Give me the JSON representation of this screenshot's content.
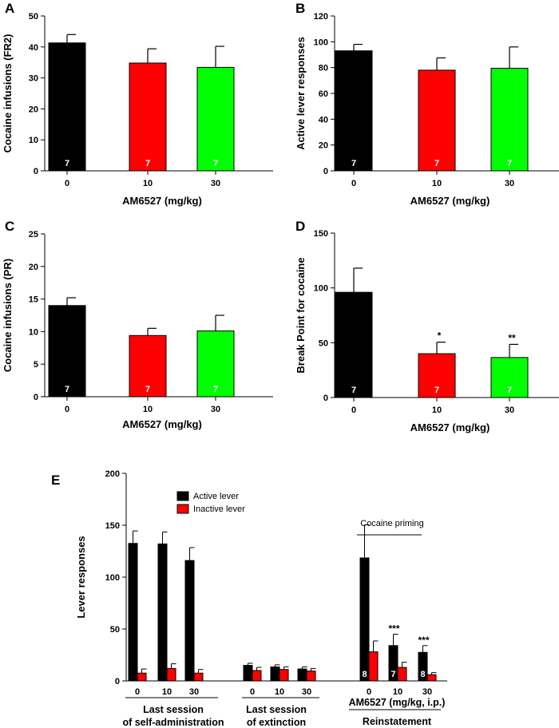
{
  "chart_data": [
    {
      "id": "A",
      "type": "bar",
      "panel_label": "A",
      "categories": [
        "0",
        "10",
        "30"
      ],
      "values": [
        41.3,
        34.8,
        33.4
      ],
      "errors": [
        2.7,
        4.6,
        6.8
      ],
      "n_labels": [
        "7",
        "7",
        "7"
      ],
      "sig_labels": [
        "",
        "",
        ""
      ],
      "colors": [
        "#000000",
        "#ff0000",
        "#00ff00"
      ],
      "xlabel": "AM6527 (mg/kg)",
      "ylabel": "Cocaine infusions (FR2)",
      "ylim": [
        0,
        50
      ],
      "yticks": [
        0,
        10,
        20,
        30,
        40,
        50
      ]
    },
    {
      "id": "B",
      "type": "bar",
      "panel_label": "B",
      "categories": [
        "0",
        "10",
        "30"
      ],
      "values": [
        93,
        78,
        79.5
      ],
      "errors": [
        5,
        9.5,
        16.5
      ],
      "n_labels": [
        "7",
        "7",
        "7"
      ],
      "sig_labels": [
        "",
        "",
        ""
      ],
      "colors": [
        "#000000",
        "#ff0000",
        "#00ff00"
      ],
      "xlabel": "AM6527 (mg/kg)",
      "ylabel": "Active lever responses",
      "ylim": [
        0,
        120
      ],
      "yticks": [
        0,
        20,
        40,
        60,
        80,
        100,
        120
      ]
    },
    {
      "id": "C",
      "type": "bar",
      "panel_label": "C",
      "categories": [
        "0",
        "10",
        "30"
      ],
      "values": [
        14,
        9.4,
        10.1
      ],
      "errors": [
        1.2,
        1.1,
        2.4
      ],
      "n_labels": [
        "7",
        "7",
        "7"
      ],
      "sig_labels": [
        "",
        "",
        ""
      ],
      "colors": [
        "#000000",
        "#ff0000",
        "#00ff00"
      ],
      "xlabel": "AM6527 (mg/kg)",
      "ylabel": "Cocaine infusions (PR)",
      "ylim": [
        0,
        25
      ],
      "yticks": [
        0,
        5,
        10,
        15,
        20,
        25
      ]
    },
    {
      "id": "D",
      "type": "bar",
      "panel_label": "D",
      "categories": [
        "0",
        "10",
        "30"
      ],
      "values": [
        96,
        40,
        36.5
      ],
      "errors": [
        22,
        10.5,
        12
      ],
      "n_labels": [
        "7",
        "7",
        "7"
      ],
      "sig_labels": [
        "",
        "*",
        "**"
      ],
      "colors": [
        "#000000",
        "#ff0000",
        "#00ff00"
      ],
      "xlabel": "AM6527 (mg/kg)",
      "ylabel": "Break Point for cocaine",
      "ylim": [
        0,
        150
      ],
      "yticks": [
        0,
        50,
        100,
        150
      ]
    },
    {
      "id": "E",
      "type": "bar",
      "panel_label": "E",
      "ylabel": "Lever responses",
      "ylim": [
        0,
        200
      ],
      "yticks": [
        0,
        50,
        100,
        150,
        200
      ],
      "legend": {
        "placement": "top-left",
        "entries": [
          "Active lever",
          "Inactive lever"
        ]
      },
      "series": [
        {
          "name": "Active lever",
          "color": "#000000"
        },
        {
          "name": "Inactive lever",
          "color": "#ff0000"
        }
      ],
      "groups": [
        {
          "label_lines": [
            "Last session",
            "of self-administration"
          ],
          "categories": [
            "0",
            "10",
            "30"
          ],
          "active": [
            132.5,
            132,
            116
          ],
          "active_err": [
            12,
            11.5,
            12.5
          ],
          "inactive": [
            7.5,
            12,
            7.5
          ],
          "inactive_err": [
            4,
            4.5,
            3.5
          ],
          "n_labels": [
            "",
            "",
            ""
          ],
          "sig_labels": [
            "",
            "",
            ""
          ]
        },
        {
          "label_lines": [
            "Last session",
            "of  extinction"
          ],
          "categories": [
            "0",
            "10",
            "30"
          ],
          "active": [
            15,
            13.5,
            11.5
          ],
          "active_err": [
            2,
            2,
            2
          ],
          "inactive": [
            10,
            11,
            9.5
          ],
          "inactive_err": [
            3,
            2.5,
            2.5
          ],
          "n_labels": [
            "",
            "",
            ""
          ],
          "sig_labels": [
            "",
            "",
            ""
          ]
        },
        {
          "label_lines": [
            "AM6527 (mg/kg, i.p.)",
            "Reinstatement"
          ],
          "categories": [
            "0",
            "10",
            "30"
          ],
          "active": [
            118.5,
            34,
            27.5
          ],
          "active_err": [
            32,
            11,
            6.5
          ],
          "inactive": [
            28,
            13,
            6
          ],
          "inactive_err": [
            10.5,
            5,
            2
          ],
          "n_labels": [
            "8",
            "7",
            "8"
          ],
          "sig_labels": [
            "",
            "***",
            "***"
          ]
        }
      ],
      "annotation": "Cocaine priming"
    }
  ]
}
